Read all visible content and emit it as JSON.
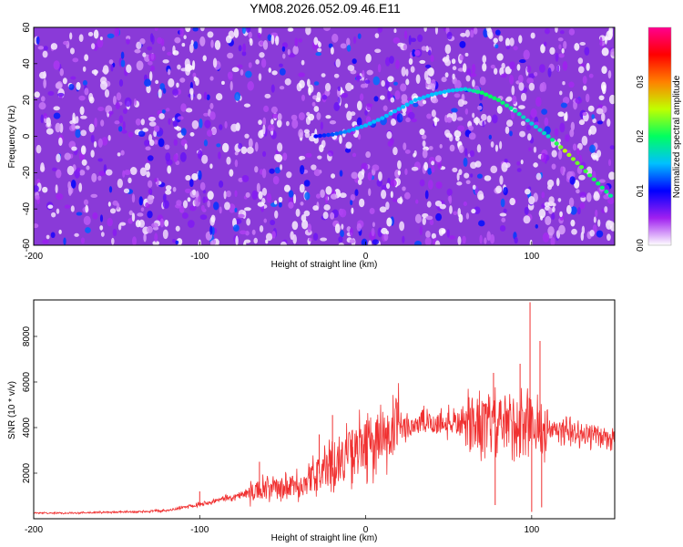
{
  "figure_title": "YM08.2026.052.09.46.E11",
  "chart_data": [
    {
      "type": "heatmap",
      "title": "YM08.2026.052.09.46.E11",
      "xlabel": "Height of straight line (km)",
      "ylabel": "Frequency (Hz)",
      "xlim": [
        -200,
        150
      ],
      "ylim": [
        -60,
        60
      ],
      "xticks": [
        -200,
        -100,
        0,
        100
      ],
      "xtick_labels": [
        "-200",
        "-100",
        "0",
        "100"
      ],
      "yticks": [
        -60,
        -40,
        -20,
        0,
        20,
        40,
        60
      ],
      "ytick_labels": [
        "-60",
        "-40",
        "-20",
        "0",
        "20",
        "40",
        "60"
      ],
      "background_amplitude_range": [
        0.0,
        0.1
      ],
      "ridge": {
        "description": "high-amplitude curved trace",
        "x": [
          -30,
          -20,
          -10,
          0,
          10,
          20,
          30,
          40,
          50,
          60,
          70,
          80,
          90,
          100,
          110,
          120,
          130,
          140,
          150
        ],
        "y": [
          0,
          1,
          3,
          6,
          10,
          15,
          20,
          23,
          25,
          26,
          24,
          20,
          14,
          7,
          0,
          -8,
          -17,
          -26,
          -35
        ],
        "amplitude": [
          0.1,
          0.12,
          0.14,
          0.15,
          0.15,
          0.15,
          0.15,
          0.15,
          0.15,
          0.16,
          0.2,
          0.2,
          0.18,
          0.16,
          0.17,
          0.25,
          0.22,
          0.2,
          0.18
        ]
      },
      "colorbar": {
        "label": "Normalized spectral amplitude",
        "range": [
          0.0,
          0.4
        ],
        "ticks": [
          0.0,
          0.1,
          0.2,
          0.3
        ],
        "tick_labels": [
          "0.0",
          "0.1",
          "0.2",
          "0.3"
        ],
        "colors": [
          "#ffffff",
          "#a020f0",
          "#0000ff",
          "#00c0ff",
          "#00ff60",
          "#c0ff00",
          "#ff8000",
          "#ff0000",
          "#ff0090"
        ]
      }
    },
    {
      "type": "line",
      "title": "",
      "xlabel": "Height of straight line (km)",
      "ylabel": "SNR (10 * v/v)",
      "xlim": [
        -200,
        150
      ],
      "ylim": [
        0,
        9600
      ],
      "xticks": [
        -200,
        -100,
        0,
        100
      ],
      "xtick_labels": [
        "-200",
        "-100",
        "0",
        "100"
      ],
      "yticks": [
        2000,
        4000,
        6000,
        8000
      ],
      "ytick_labels": [
        "2000",
        "4000",
        "6000",
        "8000"
      ],
      "series": [
        {
          "name": "SNR",
          "color": "#f03030",
          "x": [
            -200,
            -180,
            -160,
            -140,
            -120,
            -110,
            -100,
            -90,
            -80,
            -70,
            -60,
            -50,
            -40,
            -35,
            -30,
            -25,
            -20,
            -15,
            -10,
            -5,
            0,
            5,
            10,
            15,
            20,
            25,
            30,
            40,
            50,
            60,
            70,
            80,
            90,
            95,
            100,
            105,
            110,
            120,
            130,
            140,
            150
          ],
          "y": [
            250,
            250,
            280,
            300,
            350,
            500,
            650,
            800,
            950,
            1150,
            1300,
            1300,
            1450,
            1650,
            1900,
            2100,
            2350,
            2600,
            2850,
            3050,
            3200,
            3300,
            3400,
            3600,
            3900,
            4050,
            4150,
            4200,
            4200,
            4150,
            4100,
            4200,
            4100,
            4200,
            4300,
            3800,
            3900,
            3800,
            3750,
            3650,
            3550
          ],
          "spikes": [
            {
              "x": -100,
              "y": 1200
            },
            {
              "x": -64,
              "y": 2500
            },
            {
              "x": -28,
              "y": 3700
            },
            {
              "x": -20,
              "y": 4550
            },
            {
              "x": -8,
              "y": 3900
            },
            {
              "x": 77,
              "y": 6400
            },
            {
              "x": 78,
              "y": 600
            },
            {
              "x": 93,
              "y": 6800
            },
            {
              "x": 99,
              "y": 9500
            },
            {
              "x": 100,
              "y": 300
            },
            {
              "x": 105,
              "y": 7800
            },
            {
              "x": 106,
              "y": 500
            }
          ]
        }
      ]
    }
  ]
}
